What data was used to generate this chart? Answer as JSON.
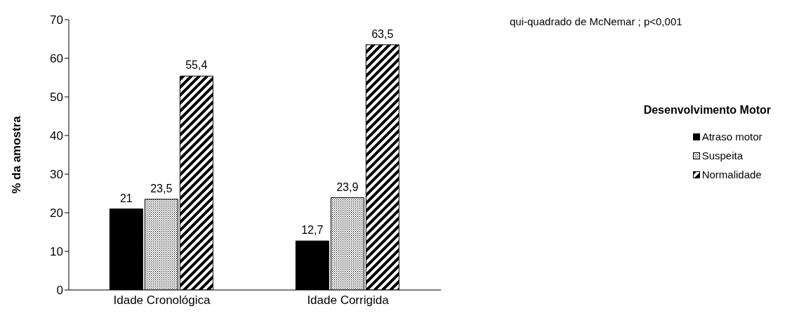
{
  "chart_data": {
    "type": "bar",
    "ylabel": "% da amostra",
    "legend_title": "Desenvolvimento Motor",
    "legend": "right",
    "annotations": [
      "qui-quadrado de McNemar ; p<0,001"
    ],
    "categories": [
      "Idade Cronológica",
      "Idade Corrigida"
    ],
    "ylim": [
      0,
      70
    ],
    "yticks": [
      0,
      10,
      20,
      30,
      40,
      50,
      60,
      70
    ],
    "series": [
      {
        "name": "Atraso motor",
        "color": "#000000",
        "values": [
          21,
          12.7
        ],
        "value_labels": [
          "21",
          "12,7"
        ]
      },
      {
        "name": "Suspeita",
        "color": "#000000",
        "values": [
          23.5,
          23.9
        ],
        "value_labels": [
          "23,5",
          "23,9"
        ]
      },
      {
        "name": "Normalidade",
        "color": "#000000",
        "values": [
          55.4,
          63.5
        ],
        "value_labels": [
          "55,4",
          "63,5"
        ]
      }
    ]
  }
}
